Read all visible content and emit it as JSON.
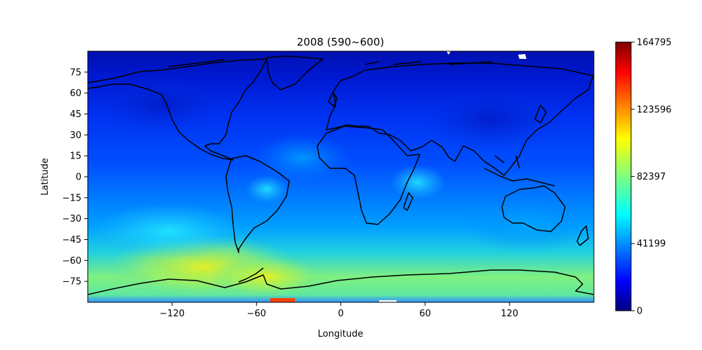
{
  "chart_data": {
    "type": "heatmap",
    "title": "2008 (590~600)",
    "xlabel": "Longitude",
    "ylabel": "Latitude",
    "xlim": [
      -180,
      180
    ],
    "ylim": [
      -90,
      90
    ],
    "xticks": [
      -120,
      -60,
      0,
      60,
      120
    ],
    "xtick_labels": [
      "−120",
      "−60",
      "0",
      "60",
      "120"
    ],
    "yticks": [
      75,
      60,
      45,
      30,
      15,
      0,
      -15,
      -30,
      -45,
      -60,
      -75
    ],
    "ytick_labels": [
      "75",
      "60",
      "45",
      "30",
      "15",
      "0",
      "−15",
      "−30",
      "−45",
      "−60",
      "−75"
    ],
    "colorbar": {
      "colormap": "jet",
      "min": 0,
      "max": 164795,
      "ticks": [
        0,
        41199,
        82397,
        123596,
        164795
      ],
      "tick_labels": [
        "0",
        "41199",
        "82397",
        "123596",
        "164795"
      ]
    },
    "grid": false,
    "overlay": "world coastlines (black)",
    "field_description_points": [
      {
        "lon": -100,
        "lat": -68,
        "value": 100000
      },
      {
        "lon": -60,
        "lat": -65,
        "value": 95000
      },
      {
        "lon": -40,
        "lat": -62,
        "value": 85000
      },
      {
        "lon": -55,
        "lat": -88,
        "value": 150000
      },
      {
        "lon": -55,
        "lat": -10,
        "value": 55000
      },
      {
        "lon": 50,
        "lat": -5,
        "value": 50000
      },
      {
        "lon": 0,
        "lat": 80,
        "value": 8000
      },
      {
        "lon": 0,
        "lat": 30,
        "value": 30000
      }
    ]
  }
}
